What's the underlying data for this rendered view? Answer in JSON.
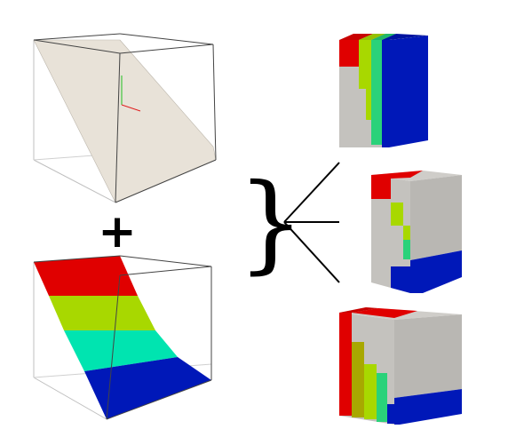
{
  "operators": {
    "plus": "+",
    "brace": "}"
  },
  "colors": {
    "plane": "#e8e2d8",
    "band_red": "#e00000",
    "band_yellow_green": "#a8d800",
    "band_green": "#2ad27a",
    "band_cyan": "#00e4b0",
    "band_blue": "#0018b8",
    "cube_gray": "#c4c2be",
    "olive": "#a8a800",
    "axis_x": "#e02020",
    "axis_y": "#20c020"
  },
  "panels": {
    "input_plane": "plain-plane",
    "input_field": "colored-plane",
    "outputs": [
      "result-cube-1",
      "result-cube-2",
      "result-cube-3"
    ]
  }
}
